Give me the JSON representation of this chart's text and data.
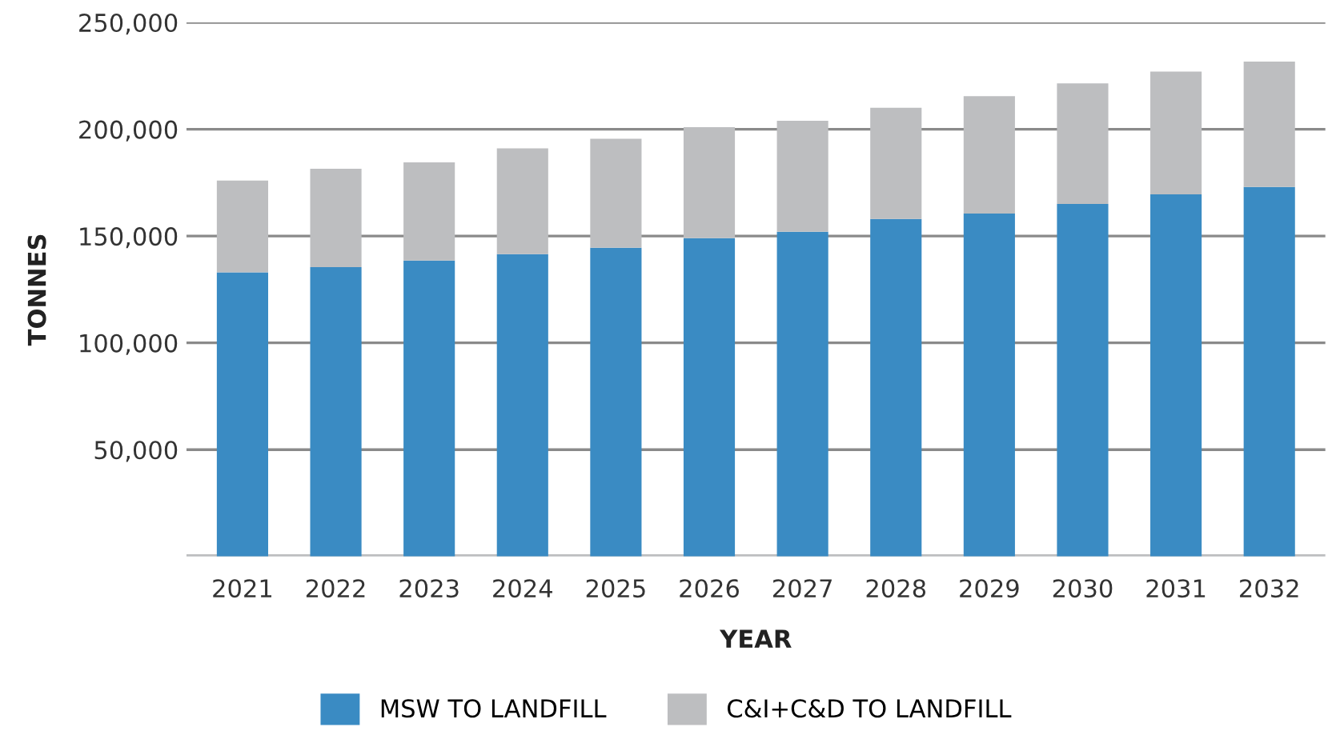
{
  "chart_data": {
    "type": "bar",
    "stacked": true,
    "xlabel": "YEAR",
    "ylabel": "TONNES",
    "categories": [
      "2021",
      "2022",
      "2023",
      "2024",
      "2025",
      "2026",
      "2027",
      "2028",
      "2029",
      "2030",
      "2031",
      "2032"
    ],
    "series": [
      {
        "name": "MSW TO LANDFILL",
        "color": "#3a8bc3",
        "values": [
          133000,
          135500,
          138500,
          141500,
          144500,
          149000,
          152000,
          158000,
          160500,
          165000,
          169500,
          173000
        ]
      },
      {
        "name": "C&I+C&D TO LANDFILL",
        "color": "#bdbec0",
        "values": [
          43000,
          46000,
          46000,
          49500,
          51000,
          52000,
          52000,
          52000,
          55000,
          56500,
          57500,
          58700
        ]
      }
    ],
    "ylim": [
      0,
      250000
    ],
    "yticks": [
      {
        "value": 50000,
        "label": "50,000"
      },
      {
        "value": 100000,
        "label": "100,000"
      },
      {
        "value": 150000,
        "label": "150,000"
      },
      {
        "value": 200000,
        "label": "200,000"
      },
      {
        "value": 250000,
        "label": "250,000"
      }
    ],
    "grid": "y",
    "legend": "bottom"
  }
}
